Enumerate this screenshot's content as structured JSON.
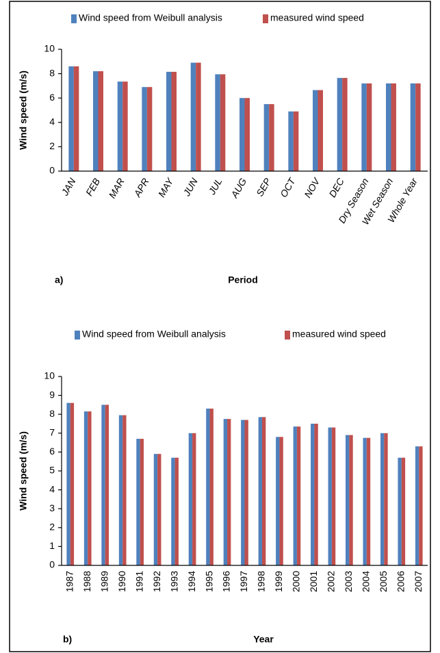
{
  "chart_data": [
    {
      "type": "bar",
      "panel_label": "a)",
      "x_label": "Period",
      "y_label": "Wind speed (m/s)",
      "categories": [
        "JAN",
        "FEB",
        "MAR",
        "APR",
        "MAY",
        "JUN",
        "JUL",
        "AUG",
        "SEP",
        "OCT",
        "NOV",
        "DEC",
        "Dry Season",
        "Wet Season",
        "Whole Year"
      ],
      "series": [
        {
          "name": "Wind speed from Weibull analysis",
          "color": "#4f81bd",
          "values": [
            8.6,
            8.2,
            7.35,
            6.9,
            8.15,
            8.9,
            7.95,
            6.0,
            5.5,
            4.9,
            6.65,
            7.65,
            7.2,
            7.2,
            7.2
          ]
        },
        {
          "name": "measured wind speed",
          "color": "#c0504d",
          "values": [
            8.6,
            8.2,
            7.35,
            6.9,
            8.15,
            8.9,
            7.95,
            6.0,
            5.5,
            4.9,
            6.65,
            7.65,
            7.2,
            7.2,
            7.2
          ]
        }
      ],
      "ylim": [
        0,
        10
      ],
      "yticks": [
        0,
        2,
        4,
        6,
        8,
        10
      ],
      "grid": false,
      "legend": "top"
    },
    {
      "type": "bar",
      "panel_label": "b)",
      "x_label": "Year",
      "y_label": "Wind speed (m/s)",
      "categories": [
        "1987",
        "1988",
        "1989",
        "1990",
        "1991",
        "1992",
        "1993",
        "1994",
        "1995",
        "1996",
        "1997",
        "1998",
        "1999",
        "2000",
        "2001",
        "2002",
        "2003",
        "2004",
        "2005",
        "2006",
        "2007"
      ],
      "series": [
        {
          "name": "Wind speed from Weibull analysis",
          "color": "#4f81bd",
          "values": [
            8.6,
            8.15,
            8.5,
            7.95,
            6.7,
            5.9,
            5.7,
            7.0,
            8.3,
            7.75,
            7.7,
            7.85,
            6.8,
            7.35,
            7.5,
            7.3,
            6.9,
            6.75,
            7.0,
            5.7,
            6.3
          ]
        },
        {
          "name": "measured wind speed",
          "color": "#c0504d",
          "values": [
            8.6,
            8.15,
            8.5,
            7.95,
            6.7,
            5.9,
            5.7,
            7.0,
            8.3,
            7.75,
            7.7,
            7.85,
            6.8,
            7.35,
            7.5,
            7.3,
            6.9,
            6.75,
            7.0,
            5.7,
            6.3
          ]
        }
      ],
      "ylim": [
        0,
        10
      ],
      "yticks": [
        0,
        1,
        2,
        3,
        4,
        5,
        6,
        7,
        8,
        9,
        10
      ],
      "grid": false,
      "legend": "top"
    }
  ]
}
